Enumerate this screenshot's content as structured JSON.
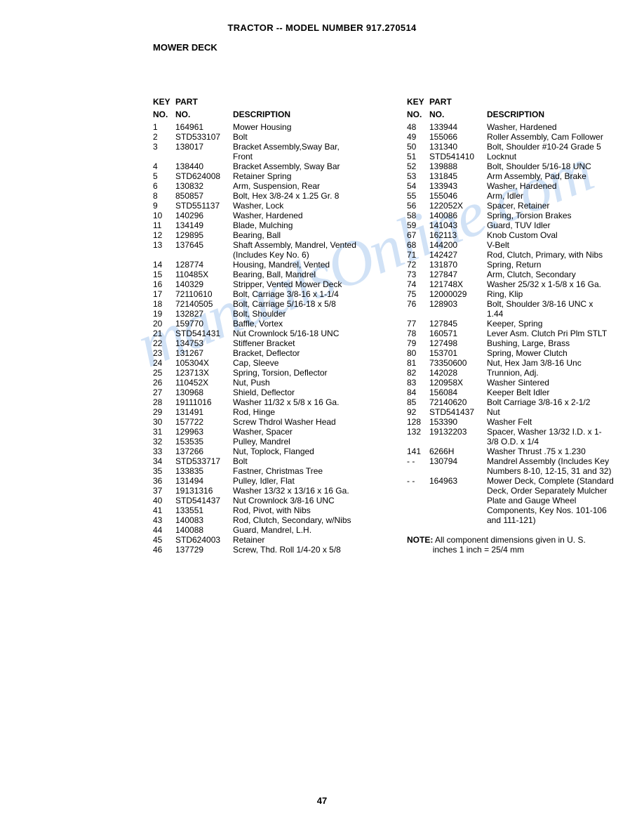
{
  "title": "TRACTOR -- MODEL NUMBER 917.270514",
  "section": "MOWER DECK",
  "headers": {
    "key1": "KEY",
    "key2": "NO.",
    "part1": "PART",
    "part2": "NO.",
    "desc": "DESCRIPTION"
  },
  "left": [
    {
      "k": "1",
      "p": "164961",
      "d": "Mower Housing"
    },
    {
      "k": "2",
      "p": "STD533107",
      "d": "Bolt"
    },
    {
      "k": "3",
      "p": "138017",
      "d": "Bracket Assembly,Sway Bar,"
    },
    {
      "k": "",
      "p": "",
      "d": "Front"
    },
    {
      "k": "4",
      "p": "138440",
      "d": "Bracket Assembly, Sway Bar"
    },
    {
      "k": "5",
      "p": "STD624008",
      "d": "Retainer Spring"
    },
    {
      "k": "6",
      "p": "130832",
      "d": "Arm, Suspension, Rear"
    },
    {
      "k": "8",
      "p": "850857",
      "d": "Bolt, Hex 3/8-24 x 1.25 Gr. 8"
    },
    {
      "k": "9",
      "p": "STD551137",
      "d": "Washer, Lock"
    },
    {
      "k": "10",
      "p": "140296",
      "d": "Washer, Hardened"
    },
    {
      "k": "11",
      "p": "134149",
      "d": "Blade, Mulching"
    },
    {
      "k": "12",
      "p": "129895",
      "d": "Bearing, Ball"
    },
    {
      "k": "13",
      "p": "137645",
      "d": "Shaft Assembly, Mandrel, Vented"
    },
    {
      "k": "",
      "p": "",
      "d": "(Includes Key No. 6)"
    },
    {
      "k": "14",
      "p": "128774",
      "d": "Housing, Mandrel, Vented"
    },
    {
      "k": "15",
      "p": "110485X",
      "d": "Bearing, Ball, Mandrel"
    },
    {
      "k": "16",
      "p": "140329",
      "d": "Stripper, Vented Mower Deck"
    },
    {
      "k": "17",
      "p": "72110610",
      "d": "Bolt, Carriage 3/8-16 x 1-1/4"
    },
    {
      "k": "18",
      "p": "72140505",
      "d": "Bolt, Carriage 5/16-18 x 5/8"
    },
    {
      "k": "19",
      "p": "132827",
      "d": "Bolt, Shoulder"
    },
    {
      "k": "20",
      "p": "159770",
      "d": "Baffle, Vortex"
    },
    {
      "k": "21",
      "p": "STD541431",
      "d": "Nut Crownlock 5/16-18 UNC"
    },
    {
      "k": "22",
      "p": "134753",
      "d": "Stiffener Bracket"
    },
    {
      "k": "23",
      "p": "131267",
      "d": "Bracket, Deflector"
    },
    {
      "k": "24",
      "p": "105304X",
      "d": "Cap, Sleeve"
    },
    {
      "k": "25",
      "p": "123713X",
      "d": "Spring, Torsion, Deflector"
    },
    {
      "k": "26",
      "p": "110452X",
      "d": "Nut, Push"
    },
    {
      "k": "27",
      "p": "130968",
      "d": "Shield, Deflector"
    },
    {
      "k": "28",
      "p": "19111016",
      "d": "Washer 11/32 x 5/8 x 16 Ga."
    },
    {
      "k": "29",
      "p": "131491",
      "d": "Rod, Hinge"
    },
    {
      "k": "30",
      "p": "157722",
      "d": "Screw Thdrol Washer Head"
    },
    {
      "k": "31",
      "p": "129963",
      "d": "Washer, Spacer"
    },
    {
      "k": "32",
      "p": "153535",
      "d": "Pulley, Mandrel"
    },
    {
      "k": "33",
      "p": "137266",
      "d": "Nut, Toplock, Flanged"
    },
    {
      "k": "34",
      "p": "STD533717",
      "d": "Bolt"
    },
    {
      "k": "35",
      "p": "133835",
      "d": "Fastner, Christmas Tree"
    },
    {
      "k": "36",
      "p": "131494",
      "d": "Pulley, Idler, Flat"
    },
    {
      "k": "37",
      "p": "19131316",
      "d": "Washer 13/32 x 13/16 x 16 Ga."
    },
    {
      "k": "40",
      "p": "STD541437",
      "d": "Nut Crownlock 3/8-16 UNC"
    },
    {
      "k": "41",
      "p": "133551",
      "d": "Rod, Pivot, with Nibs"
    },
    {
      "k": "43",
      "p": "140083",
      "d": "Rod, Clutch, Secondary, w/Nibs"
    },
    {
      "k": "44",
      "p": "140088",
      "d": "Guard, Mandrel, L.H."
    },
    {
      "k": "45",
      "p": "STD624003",
      "d": "Retainer"
    },
    {
      "k": "46",
      "p": "137729",
      "d": "Screw, Thd. Roll 1/4-20 x 5/8"
    }
  ],
  "right": [
    {
      "k": "48",
      "p": "133944",
      "d": "Washer, Hardened"
    },
    {
      "k": "49",
      "p": "155066",
      "d": "Roller Assembly, Cam Follower"
    },
    {
      "k": "50",
      "p": "131340",
      "d": "Bolt, Shoulder #10-24 Grade 5"
    },
    {
      "k": "51",
      "p": "STD541410",
      "d": "Locknut"
    },
    {
      "k": "52",
      "p": "139888",
      "d": "Bolt, Shoulder 5/16-18 UNC"
    },
    {
      "k": "53",
      "p": "131845",
      "d": "Arm Assembly, Pad, Brake"
    },
    {
      "k": "54",
      "p": "133943",
      "d": "Washer, Hardened"
    },
    {
      "k": "55",
      "p": "155046",
      "d": "Arm, Idler"
    },
    {
      "k": "56",
      "p": "122052X",
      "d": "Spacer, Retainer"
    },
    {
      "k": "58",
      "p": "140086",
      "d": "Spring, Torsion Brakes"
    },
    {
      "k": "59",
      "p": "141043",
      "d": "Guard, TUV Idler"
    },
    {
      "k": "67",
      "p": "162113",
      "d": "Knob Custom Oval"
    },
    {
      "k": "68",
      "p": "144200",
      "d": "V-Belt"
    },
    {
      "k": "71",
      "p": "142427",
      "d": "Rod, Clutch, Primary, with Nibs"
    },
    {
      "k": "72",
      "p": "131870",
      "d": "Spring, Return"
    },
    {
      "k": "73",
      "p": "127847",
      "d": "Arm, Clutch, Secondary"
    },
    {
      "k": "74",
      "p": "121748X",
      "d": "Washer 25/32 x 1-5/8 x 16 Ga."
    },
    {
      "k": "75",
      "p": "12000029",
      "d": "Ring, Klip"
    },
    {
      "k": "76",
      "p": "128903",
      "d": "Bolt, Shoulder 3/8-16 UNC x"
    },
    {
      "k": "",
      "p": "",
      "d": "1.44"
    },
    {
      "k": "77",
      "p": "127845",
      "d": "Keeper, Spring"
    },
    {
      "k": "78",
      "p": "160571",
      "d": "Lever Asm. Clutch Pri Plm STLT"
    },
    {
      "k": "79",
      "p": "127498",
      "d": "Bushing, Large, Brass"
    },
    {
      "k": "80",
      "p": "153701",
      "d": "Spring, Mower Clutch"
    },
    {
      "k": "81",
      "p": "73350600",
      "d": "Nut, Hex Jam 3/8-16 Unc"
    },
    {
      "k": "82",
      "p": "142028",
      "d": "Trunnion, Adj."
    },
    {
      "k": "83",
      "p": "120958X",
      "d": "Washer Sintered"
    },
    {
      "k": "84",
      "p": "156084",
      "d": "Keeper Belt Idler"
    },
    {
      "k": "85",
      "p": "72140620",
      "d": "Bolt Carriage 3/8-16 x 2-1/2"
    },
    {
      "k": "92",
      "p": "STD541437",
      "d": "Nut"
    },
    {
      "k": "128",
      "p": "153390",
      "d": "Washer Felt"
    },
    {
      "k": "132",
      "p": "19132203",
      "d": "Spacer, Washer 13/32 I.D. x 1-"
    },
    {
      "k": "",
      "p": "",
      "d": "3/8 O.D. x 1/4"
    },
    {
      "k": "141",
      "p": "6266H",
      "d": "Washer Thrust .75 x 1.230"
    },
    {
      "k": "- -",
      "p": "130794",
      "d": "Mandrel Assembly (Includes Key"
    },
    {
      "k": "",
      "p": "",
      "d": "Numbers 8-10, 12-15, 31 and 32)"
    },
    {
      "k": "- -",
      "p": "164963",
      "d": "Mower Deck, Complete (Standard"
    },
    {
      "k": "",
      "p": "",
      "d": "Deck, Order Separately Mulcher"
    },
    {
      "k": "",
      "p": "",
      "d": "Plate and Gauge Wheel"
    },
    {
      "k": "",
      "p": "",
      "d": "Components, Key Nos. 101-106"
    },
    {
      "k": "",
      "p": "",
      "d": "and 111-121)"
    }
  ],
  "note_bold": "NOTE:",
  "note_text": " All component dimensions given in U. S.",
  "note_text2": "inches 1 inch = 25/4 mm",
  "page_number": "47",
  "watermark": "manualsOnline.com"
}
